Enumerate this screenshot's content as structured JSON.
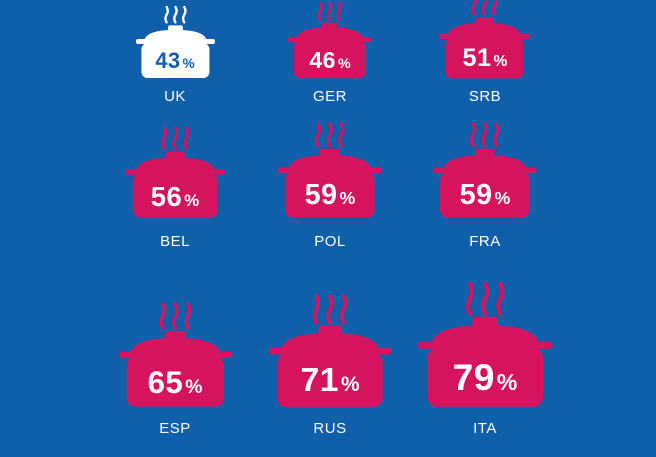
{
  "colors": {
    "background": "#0f5fab",
    "pot_highlight": "#ffffff",
    "pot_default": "#d6135e",
    "text_on_highlight": "#0f5fab",
    "text_on_default": "#ffffff"
  },
  "chart_data": {
    "type": "pictogram",
    "unit": "%",
    "categories": [
      "UK",
      "GER",
      "SRB",
      "BEL",
      "POL",
      "FRA",
      "ESP",
      "RUS",
      "ITA"
    ],
    "values": [
      43,
      46,
      51,
      56,
      59,
      59,
      65,
      71,
      79
    ],
    "highlight": "UK",
    "icon": "cooking-pot-icon",
    "icon_size_encodes_value": true
  }
}
